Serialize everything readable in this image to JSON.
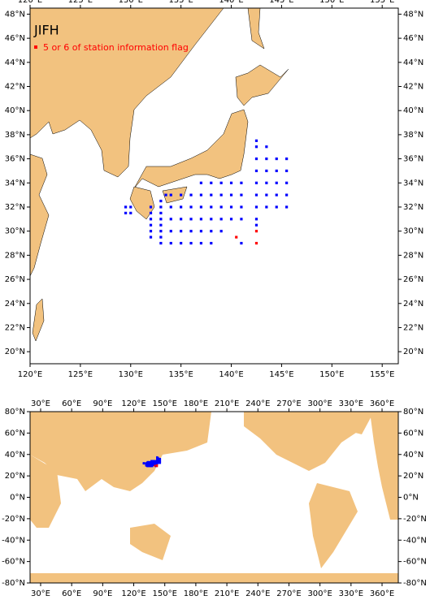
{
  "maps": [
    {
      "title": "JIFH",
      "legend": "5 or 6 of station information flag",
      "xlim": [
        120,
        156.6
      ],
      "ylim": [
        19,
        48.5
      ],
      "xticks": [
        {
          "value": 120,
          "label": "120°E"
        },
        {
          "value": 125,
          "label": "125°E"
        },
        {
          "value": 130,
          "label": "130°E"
        },
        {
          "value": 135,
          "label": "135°E"
        },
        {
          "value": 140,
          "label": "140°E"
        },
        {
          "value": 145,
          "label": "145°E"
        },
        {
          "value": 150,
          "label": "150°E"
        },
        {
          "value": 155,
          "label": "155°E"
        }
      ],
      "yticks": [
        {
          "value": 20,
          "label": "20°N"
        },
        {
          "value": 22,
          "label": "22°N"
        },
        {
          "value": 24,
          "label": "24°N"
        },
        {
          "value": 26,
          "label": "26°N"
        },
        {
          "value": 28,
          "label": "28°N"
        },
        {
          "value": 30,
          "label": "30°N"
        },
        {
          "value": 32,
          "label": "32°N"
        },
        {
          "value": 34,
          "label": "34°N"
        },
        {
          "value": 36,
          "label": "36°N"
        },
        {
          "value": 38,
          "label": "38°N"
        },
        {
          "value": 40,
          "label": "40°N"
        },
        {
          "value": 42,
          "label": "42°N"
        },
        {
          "value": 44,
          "label": "44°N"
        },
        {
          "value": 46,
          "label": "46°N"
        },
        {
          "value": 48,
          "label": "48°N"
        }
      ]
    },
    {
      "xlim": [
        19.8,
        375.7
      ],
      "ylim": [
        -80,
        80
      ],
      "xticks": [
        {
          "value": 30,
          "label": "30°E"
        },
        {
          "value": 60,
          "label": "60°E"
        },
        {
          "value": 90,
          "label": "90°E"
        },
        {
          "value": 120,
          "label": "120°E"
        },
        {
          "value": 150,
          "label": "150°E"
        },
        {
          "value": 180,
          "label": "180°E"
        },
        {
          "value": 210,
          "label": "210°E"
        },
        {
          "value": 240,
          "label": "240°E"
        },
        {
          "value": 270,
          "label": "270°E"
        },
        {
          "value": 300,
          "label": "300°E"
        },
        {
          "value": 330,
          "label": "330°E"
        },
        {
          "value": 360,
          "label": "360°E"
        }
      ],
      "yticks": [
        {
          "value": -80,
          "label": "-80°N"
        },
        {
          "value": -60,
          "label": "-60°N"
        },
        {
          "value": -40,
          "label": "-40°N"
        },
        {
          "value": -20,
          "label": "-20°N"
        },
        {
          "value": 0,
          "label": "0°N"
        },
        {
          "value": 20,
          "label": "20°N"
        },
        {
          "value": 40,
          "label": "40°N"
        },
        {
          "value": 60,
          "label": "60°N"
        },
        {
          "value": 80,
          "label": "80°N"
        }
      ]
    }
  ],
  "stations": {
    "color": "#0000ff",
    "lon": [
      129.5,
      129.5,
      130,
      130,
      132,
      132,
      132,
      132,
      132,
      132,
      133,
      133,
      133,
      133,
      133,
      133,
      133,
      133,
      133.5,
      134,
      134,
      134,
      134,
      134,
      135,
      135,
      135,
      135,
      135,
      136,
      136,
      136,
      136,
      136,
      137,
      137,
      137,
      137,
      137,
      137,
      138,
      138,
      138,
      138,
      138,
      138,
      139,
      139,
      139,
      139,
      139,
      140,
      140,
      140,
      140,
      141,
      141,
      141,
      141,
      141,
      142.5,
      142.5,
      142.5,
      142.5,
      142.5,
      142.5,
      142.5,
      142.5,
      142.5,
      143.5,
      143.5,
      143.5,
      143.5,
      143.5,
      143.5,
      144.5,
      144.5,
      144.5,
      144.5,
      144.5,
      145.5,
      145.5,
      145.5,
      145.5,
      145.5
    ],
    "lat": [
      31.5,
      32,
      31.5,
      32,
      29.5,
      30,
      30.5,
      31,
      31.5,
      32,
      29,
      29.5,
      30,
      30.5,
      31,
      31.5,
      32,
      32.5,
      33,
      29,
      30,
      31,
      32,
      33,
      29,
      30,
      31,
      32,
      33,
      29,
      30,
      31,
      32,
      33,
      29,
      30,
      31,
      32,
      33,
      34,
      29,
      30,
      31,
      32,
      33,
      34,
      30,
      31,
      32,
      33,
      34,
      31,
      32,
      33,
      34,
      29,
      31,
      32,
      33,
      34,
      30.5,
      31,
      32,
      33,
      34,
      35,
      36,
      37,
      37.5,
      32,
      33,
      34,
      35,
      36,
      37,
      32,
      33,
      34,
      35,
      36,
      32,
      33,
      34,
      35,
      36
    ]
  },
  "flagged": {
    "color": "#ff0000",
    "lon": [
      142.5,
      142.5,
      140.5
    ],
    "lat": [
      30,
      29,
      29.5
    ]
  }
}
